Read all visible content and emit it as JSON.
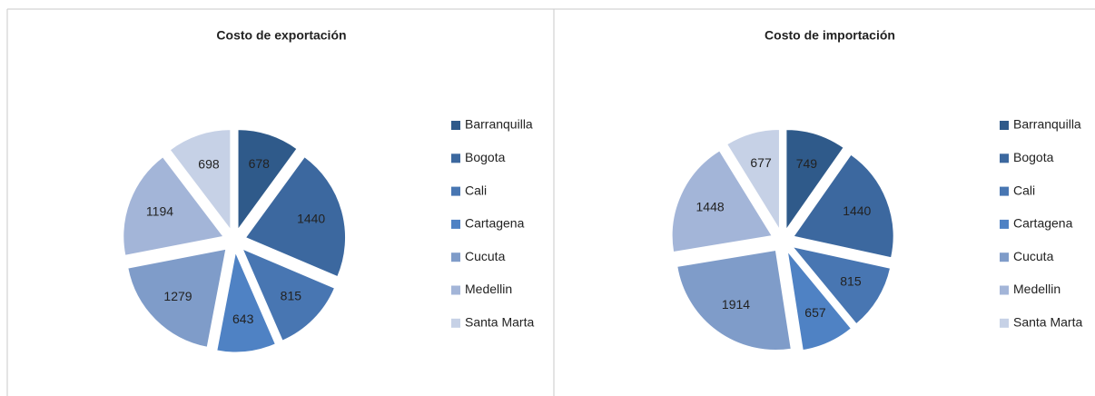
{
  "chart_data": [
    {
      "type": "pie",
      "title": "Costo de exportación",
      "categories": [
        "Barranquilla",
        "Bogota",
        "Cali",
        "Cartagena",
        "Cucuta",
        "Medellin",
        "Santa Marta"
      ],
      "values": [
        678,
        1440,
        815,
        643,
        1279,
        1194,
        698
      ],
      "colors": [
        "#2f5a8a",
        "#3c689f",
        "#4876b2",
        "#4f82c4",
        "#7f9cc9",
        "#a3b5d8",
        "#c6d1e6"
      ],
      "legend": "right"
    },
    {
      "type": "pie",
      "title": "Costo de importación",
      "categories": [
        "Barranquilla",
        "Bogota",
        "Cali",
        "Cartagena",
        "Cucuta",
        "Medellin",
        "Santa Marta"
      ],
      "values": [
        749,
        1440,
        815,
        657,
        1914,
        1448,
        677
      ],
      "colors": [
        "#2f5a8a",
        "#3c689f",
        "#4876b2",
        "#4f82c4",
        "#7f9cc9",
        "#a3b5d8",
        "#c6d1e6"
      ],
      "legend": "right"
    }
  ]
}
